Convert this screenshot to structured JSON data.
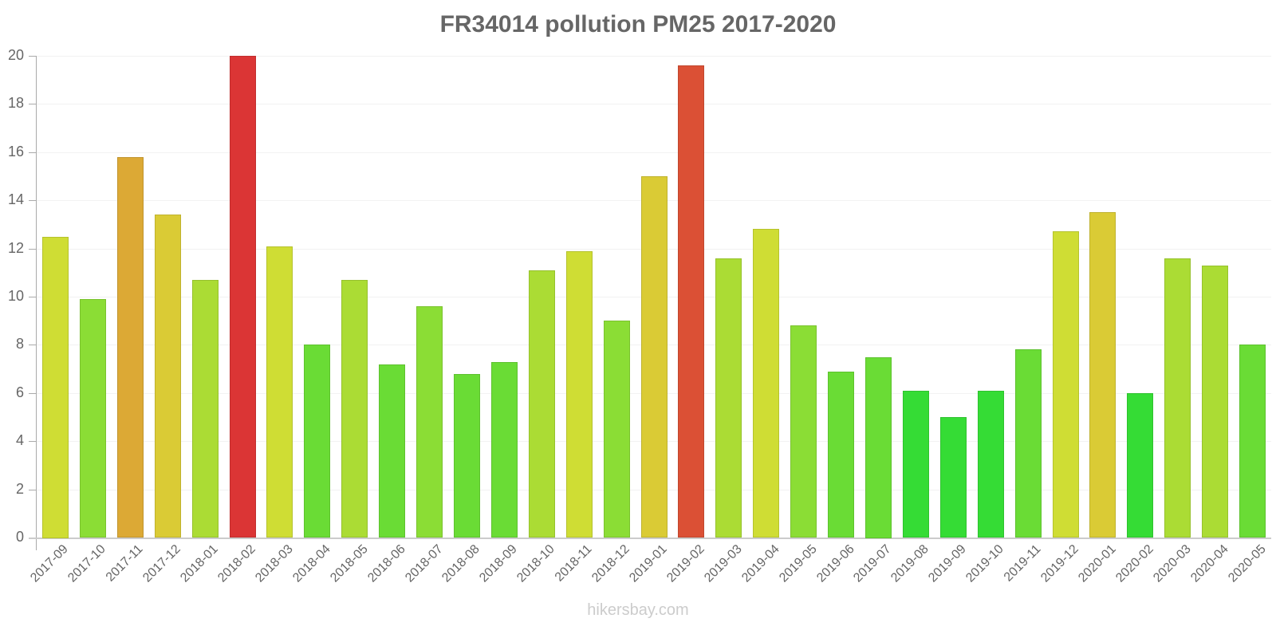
{
  "chart_data": {
    "type": "bar",
    "title": "FR34014 pollution PM25 2017-2020",
    "xlabel": "",
    "ylabel": "",
    "ylim": [
      0,
      20
    ],
    "yticks": [
      0,
      2,
      4,
      6,
      8,
      10,
      12,
      14,
      16,
      18,
      20
    ],
    "grid": true,
    "legend": null,
    "categories": [
      "2017-09",
      "2017-10",
      "2017-11",
      "2017-12",
      "2018-01",
      "2018-02",
      "2018-03",
      "2018-04",
      "2018-05",
      "2018-06",
      "2018-07",
      "2018-08",
      "2018-09",
      "2018-10",
      "2018-11",
      "2018-12",
      "2019-01",
      "2019-02",
      "2019-03",
      "2019-04",
      "2019-05",
      "2019-06",
      "2019-07",
      "2019-08",
      "2019-09",
      "2019-10",
      "2019-11",
      "2019-12",
      "2020-01",
      "2020-02",
      "2020-03",
      "2020-04",
      "2020-05"
    ],
    "values": [
      12.5,
      9.9,
      15.8,
      13.4,
      10.7,
      20.0,
      12.1,
      8.0,
      10.7,
      7.2,
      9.6,
      6.8,
      7.3,
      11.1,
      11.9,
      9.0,
      15.0,
      19.6,
      11.6,
      12.8,
      8.8,
      6.9,
      7.5,
      6.1,
      5.0,
      6.1,
      7.8,
      12.7,
      13.5,
      6.0,
      11.6,
      11.3,
      8.0
    ],
    "colors": [
      "#cfdd34",
      "#8bdd35",
      "#dca935",
      "#dacb35",
      "#abdc34",
      "#db3535",
      "#cfdd34",
      "#6adc35",
      "#abdc34",
      "#6adc35",
      "#8bdd35",
      "#6adc35",
      "#6adc35",
      "#abdc34",
      "#cfdd34",
      "#8bdd35",
      "#dacb35",
      "#db5035",
      "#abdc34",
      "#cfdd34",
      "#8bdd35",
      "#6adc35",
      "#6adc35",
      "#35dc35",
      "#35dc35",
      "#35dc35",
      "#6adc35",
      "#cfdd34",
      "#dacb35",
      "#35dc35",
      "#abdc34",
      "#abdc34",
      "#6adc35"
    ]
  },
  "watermark": "hikersbay.com"
}
